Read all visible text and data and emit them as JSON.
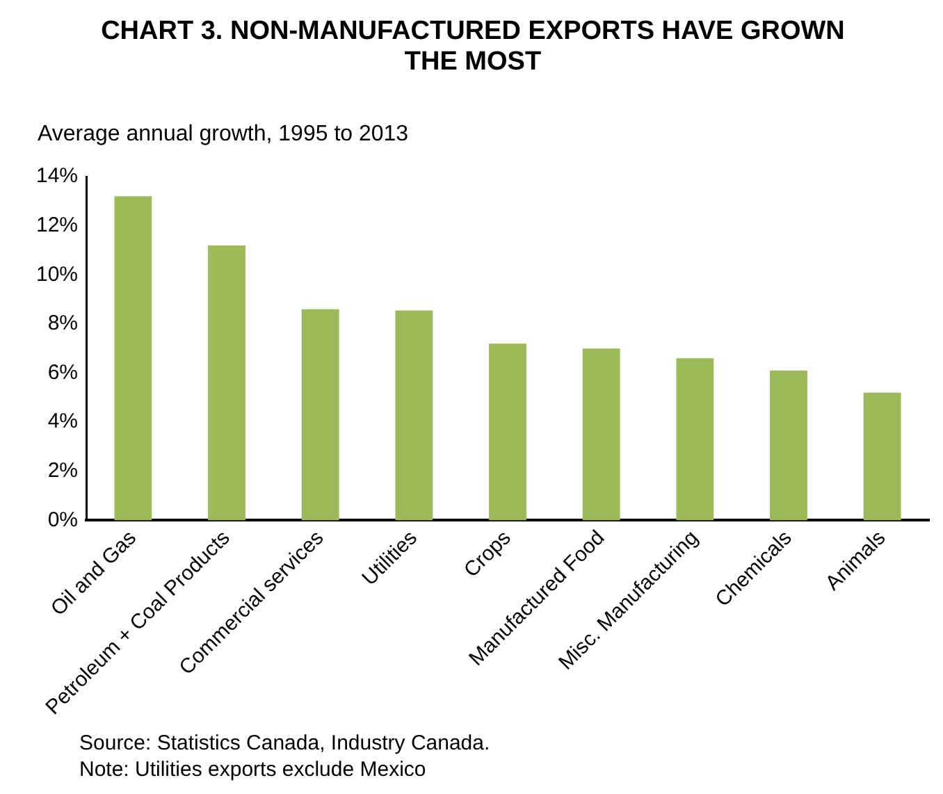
{
  "chart_data": {
    "type": "bar",
    "title": "CHART 3. NON-MANUFACTURED EXPORTS HAVE GROWN THE MOST",
    "ylabel": "Average annual growth, 1995 to 2013",
    "categories": [
      "Oil and Gas",
      "Petroleum + Coal Products",
      "Commercial services",
      "Utilities",
      "Crops",
      "Manufactured Food",
      "Misc. Manufacturing",
      "Chemicals",
      "Animals"
    ],
    "values": [
      13.2,
      11.2,
      8.6,
      8.55,
      7.2,
      7.0,
      6.6,
      6.1,
      5.2
    ],
    "color": "#9bbb59",
    "ylim": [
      0,
      14
    ],
    "yticks": [
      {
        "value": 0,
        "label": "0%"
      },
      {
        "value": 2,
        "label": "2%"
      },
      {
        "value": 4,
        "label": "4%"
      },
      {
        "value": 6,
        "label": "6%"
      },
      {
        "value": 8,
        "label": "8%"
      },
      {
        "value": 10,
        "label": "10%"
      },
      {
        "value": 12,
        "label": "12%"
      },
      {
        "value": 14,
        "label": "14%"
      }
    ],
    "grid": false,
    "legend": false,
    "annotations": [
      "Source: Statistics Canada, Industry Canada.",
      "Note: Utilities exports exclude Mexico"
    ]
  }
}
